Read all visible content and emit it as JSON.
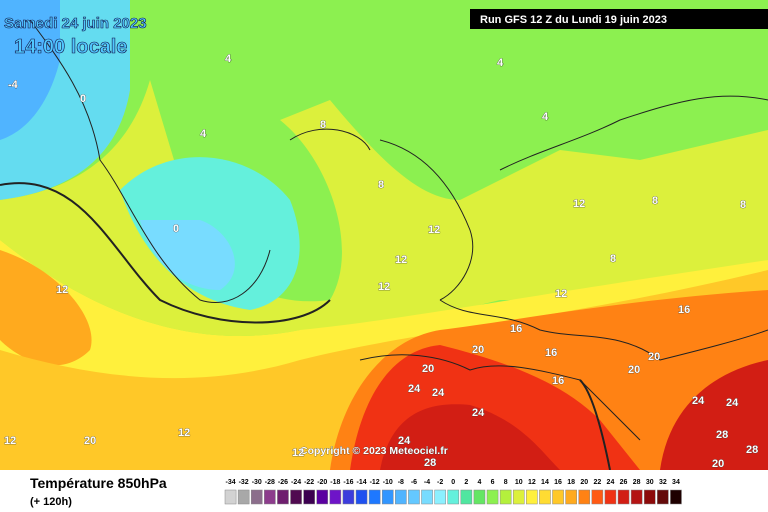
{
  "header": {
    "date": "Samedi 24 juin 2023",
    "time": "14:00 locale",
    "run": "Run GFS 12 Z du Lundi 19 juin 2023",
    "copyright": "Copyright © 2023 Meteociel.fr"
  },
  "footer": {
    "title": "Température 850hPa",
    "lead": "(+ 120h)"
  },
  "scale": {
    "labels": [
      -34,
      -32,
      -30,
      -28,
      -26,
      -24,
      -22,
      -20,
      -18,
      -16,
      -14,
      -12,
      -10,
      -8,
      -6,
      -4,
      -2,
      0,
      2,
      4,
      6,
      8,
      10,
      12,
      14,
      16,
      18,
      20,
      22,
      24,
      26,
      28,
      30,
      32,
      34
    ],
    "colors": [
      "#d2d2d2",
      "#a8a8a8",
      "#8c6e8c",
      "#8c3c8c",
      "#6e1e6e",
      "#500a50",
      "#3c0050",
      "#5a00a0",
      "#6e14c8",
      "#3c3cdc",
      "#1e50f0",
      "#1e78ff",
      "#3296ff",
      "#50b4ff",
      "#64c8ff",
      "#78dcff",
      "#8cf0ff",
      "#64f0dc",
      "#50e6a0",
      "#64e664",
      "#8cf050",
      "#b4f03c",
      "#dcf03c",
      "#fff03c",
      "#ffdc32",
      "#ffc828",
      "#ffaa1e",
      "#ff8214",
      "#ff5a14",
      "#f03214",
      "#d21e14",
      "#b41414",
      "#8c0a0a",
      "#640a0a",
      "#1e0000"
    ]
  },
  "map_labels": [
    -4,
    0,
    0,
    4,
    4,
    4,
    4,
    8,
    8,
    8,
    8,
    12,
    12,
    12,
    12,
    12,
    12,
    16,
    16,
    16,
    16,
    20,
    20,
    20,
    20,
    24,
    24,
    24,
    24,
    24,
    24,
    28,
    28,
    28,
    20,
    20,
    12,
    12,
    12,
    8
  ]
}
